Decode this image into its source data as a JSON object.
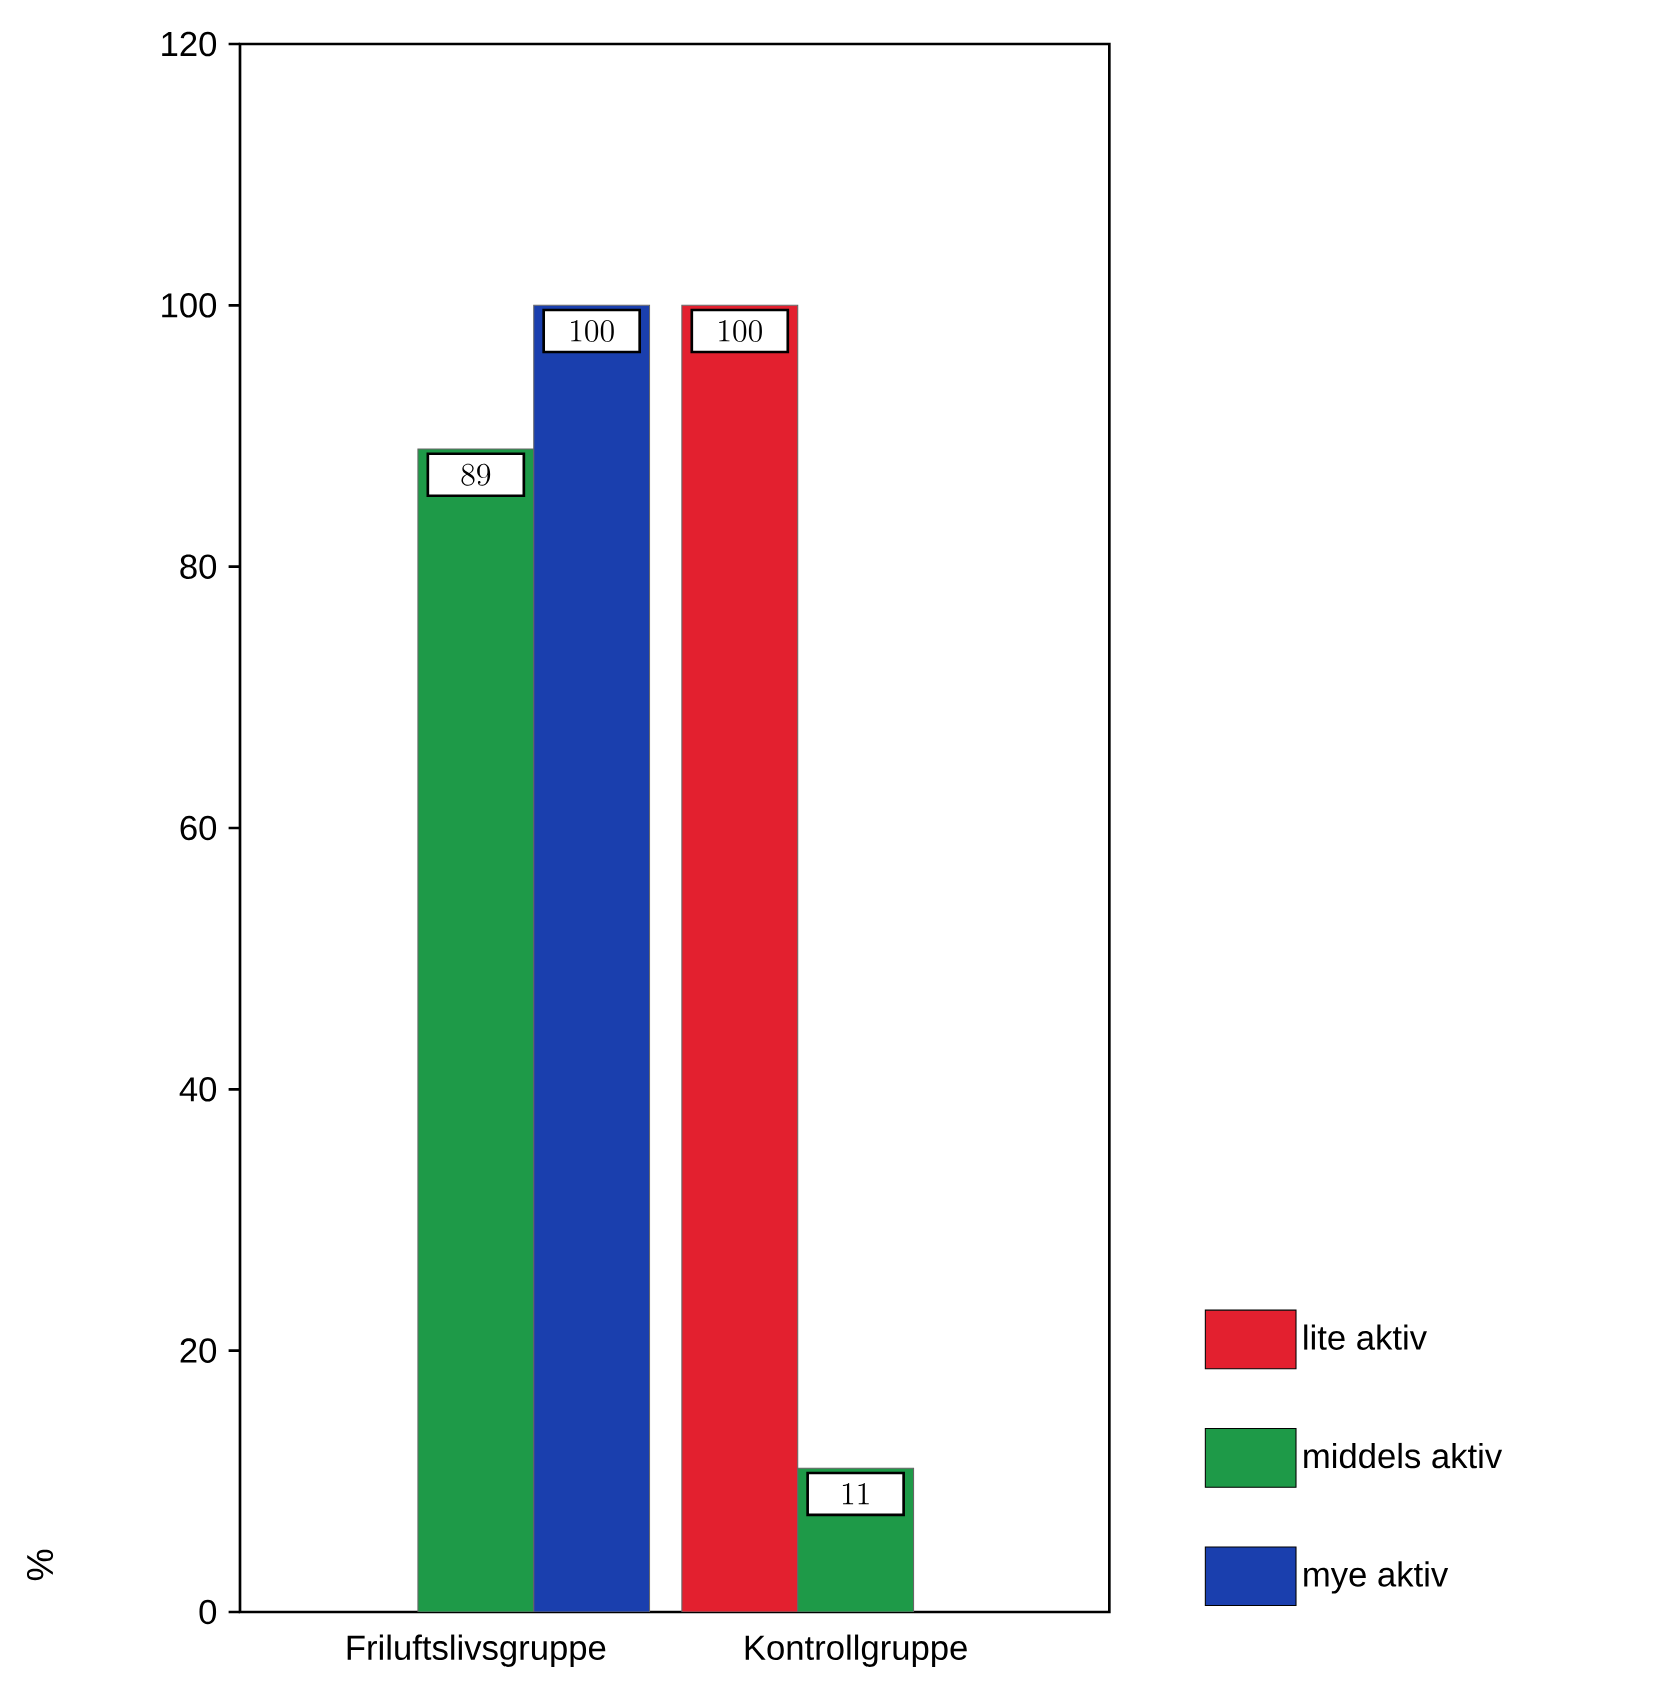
{
  "chart_data": {
    "type": "bar",
    "ylabel": "%",
    "categories": [
      "Friluftslivsgruppe",
      "Kontrollgruppe"
    ],
    "series": [
      {
        "name": "lite aktiv",
        "color": "#e3202f",
        "values": [
          null,
          100
        ]
      },
      {
        "name": "middels aktiv",
        "color": "#1e9a48",
        "values": [
          89,
          11
        ]
      },
      {
        "name": "mye aktiv",
        "color": "#1a3fae",
        "values": [
          100,
          null
        ]
      }
    ],
    "ylim": [
      0,
      120
    ],
    "yticks": [
      0,
      20,
      40,
      60,
      80,
      100,
      120
    ],
    "data_labels": true,
    "grid": false,
    "legend": "bottom right"
  }
}
